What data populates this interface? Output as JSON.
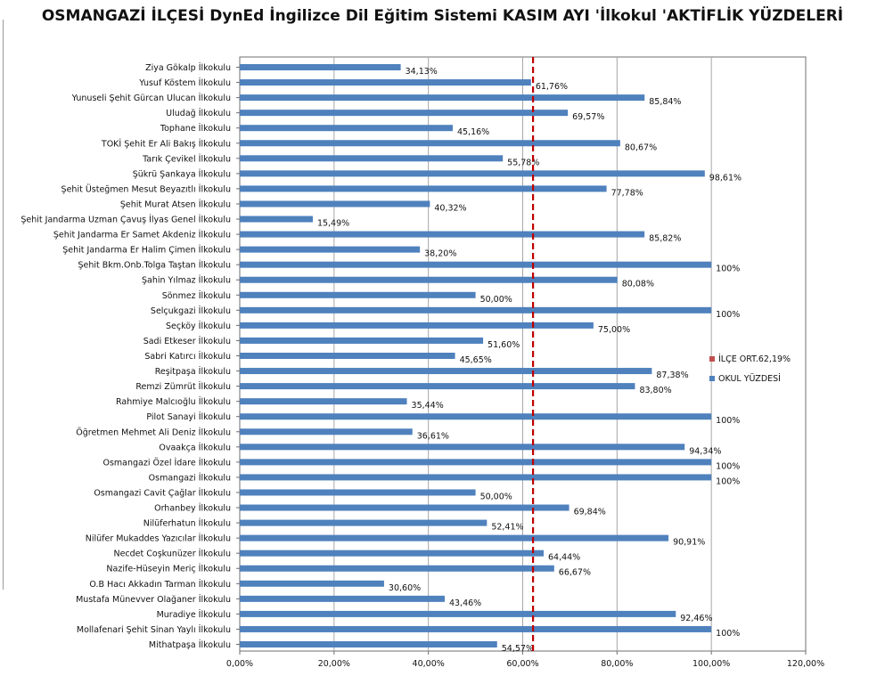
{
  "chart_data": {
    "type": "bar",
    "orientation": "horizontal",
    "title": "OSMANGAZİ İLÇESİ DynEd İngilizce Dil Eğitim Sistemi KASIM AYI 'İlkokul 'AKTİFLİK YÜZDELERİ",
    "xlim": [
      0,
      120
    ],
    "x_ticks": [
      0,
      20,
      40,
      60,
      80,
      100,
      120
    ],
    "x_tick_labels": [
      "0,00%",
      "20,00%",
      "40,00%",
      "60,00%",
      "80,00%",
      "100,00%",
      "120,00%"
    ],
    "grid": "vertical",
    "legend_position": "right",
    "categories": [
      "Ziya Gökalp İlkokulu",
      "Yusuf Köstem İlkokulu",
      "Yunuseli Şehit Gürcan Ulucan İlkokulu",
      "Uludağ İlkokulu",
      "Tophane İlkokulu",
      "TOKİ Şehit Er Ali Bakış İlkokulu",
      "Tarık Çevikel İlkokulu",
      "Şükrü Şankaya İlkokulu",
      "Şehit Üsteğmen Mesut Beyazıtlı İlkokulu",
      "Şehit Murat Atsen İlkokulu",
      "Şehit Jandarma Uzman Çavuş İlyas Genel İlkokulu",
      "Şehit Jandarma Er Samet Akdeniz İlkokulu",
      "Şehit Jandarma Er Halim Çimen İlkokulu",
      "Şehit Bkm.Onb.Tolga Taştan İlkokulu",
      "Şahin Yılmaz İlkokulu",
      "Sönmez İlkokulu",
      "Selçukgazi İlkokulu",
      "Seçköy İlkokulu",
      "Sadi Etkeser İlkokulu",
      "Sabri Katırcı İlkokulu",
      "Reşitpaşa İlkokulu",
      "Remzi Zümrüt İlkokulu",
      "Rahmiye Malcıoğlu İlkokulu",
      "Pilot Sanayi İlkokulu",
      "Öğretmen Mehmet Ali Deniz İlkokulu",
      "Ovaakça İlkokulu",
      "Osmangazi Özel İdare İlkokulu",
      "Osmangazi İlkokulu",
      "Osmangazi Cavit Çağlar İlkokulu",
      "Orhanbey İlkokulu",
      "Nilüferhatun İlkokulu",
      "Nilüfer Mukaddes Yazıcılar İlkokulu",
      "Necdet Coşkunüzer İlkokulu",
      "Nazife-Hüseyin Meriç İlkokulu",
      "O.B Hacı Akkadın Tarman İlkokulu",
      "Mustafa Münevver Olağaner İlkokulu",
      "Muradiye İlkokulu",
      "Mollafenari Şehit Sinan Yaylı İlkokulu",
      "Mithatpaşa İlkokulu"
    ],
    "series": [
      {
        "name": "OKUL YÜZDESİ",
        "color": "#4f81bd",
        "values": [
          34.13,
          61.76,
          85.84,
          69.57,
          45.16,
          80.67,
          55.78,
          98.61,
          77.78,
          40.32,
          15.49,
          85.82,
          38.2,
          100,
          80.08,
          50.0,
          100,
          75.0,
          51.6,
          45.65,
          87.38,
          83.8,
          35.44,
          100,
          36.61,
          94.34,
          100,
          100,
          50.0,
          69.84,
          52.41,
          90.91,
          64.44,
          66.67,
          30.6,
          43.46,
          92.46,
          100,
          54.57
        ],
        "labels": [
          "34,13%",
          "61,76%",
          "85,84%",
          "69,57%",
          "45,16%",
          "80,67%",
          "55,78%",
          "98,61%",
          "77,78%",
          "40,32%",
          "15,49%",
          "85,82%",
          "38,20%",
          "100%",
          "80,08%",
          "50,00%",
          "100%",
          "75,00%",
          "51,60%",
          "45,65%",
          "87,38%",
          "83,80%",
          "35,44%",
          "100%",
          "36,61%",
          "94,34%",
          "100%",
          "100%",
          "50,00%",
          "69,84%",
          "52,41%",
          "90,91%",
          "64,44%",
          "66,67%",
          "30,60%",
          "43,46%",
          "92,46%",
          "100%",
          "54,57%"
        ]
      },
      {
        "name": "İLÇE ORT.62,19%",
        "color": "#c0504d",
        "style": "dashed-line",
        "value": 62.19
      }
    ]
  }
}
